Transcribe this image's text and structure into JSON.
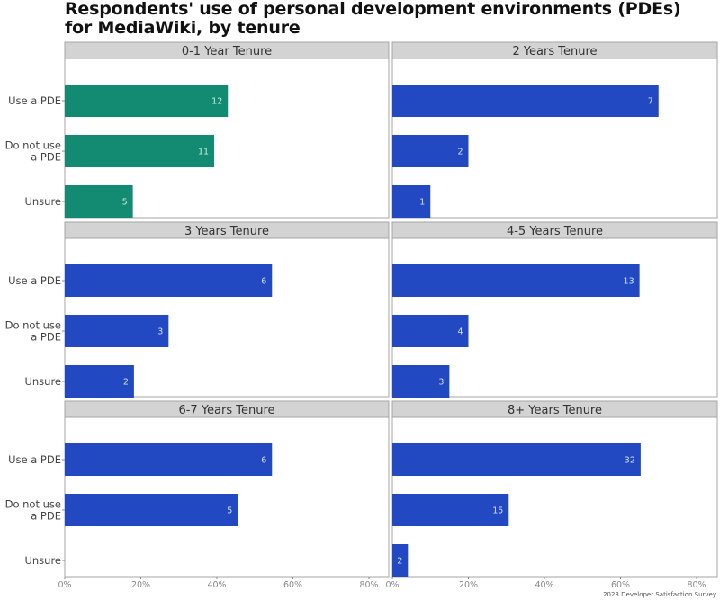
{
  "chart_data": {
    "type": "bar",
    "orientation": "horizontal",
    "title": "Respondents' use of personal development environments (PDEs) for MediaWiki, by tenure",
    "caption": "2023 Developer Satisfaction Survey",
    "categories": [
      "Use a PDE",
      "Do not use a PDE",
      "Unsure"
    ],
    "category_lines": [
      [
        "Use a PDE"
      ],
      [
        "Do not use",
        "a PDE"
      ],
      [
        "Unsure"
      ]
    ],
    "xlabel": "",
    "ylabel": "",
    "xlim": [
      0,
      80
    ],
    "x_ticks": [
      0,
      20,
      40,
      60,
      80
    ],
    "x_tick_labels": [
      "0%",
      "20%",
      "40%",
      "60%",
      "80%"
    ],
    "value_format": "percent",
    "grid": false,
    "legend": "none",
    "colors": {
      "highlight": "#138a72",
      "default": "#2349c2",
      "strip_bg": "#d3d3d3",
      "panel_border": "#a6a6a6"
    },
    "panels": [
      {
        "title": "0-1 Year Tenure",
        "highlight": true,
        "counts": [
          12,
          11,
          5
        ],
        "percents": [
          42.9,
          39.3,
          17.9
        ]
      },
      {
        "title": "2 Years Tenure",
        "highlight": false,
        "counts": [
          7,
          2,
          1
        ],
        "percents": [
          70.0,
          20.0,
          10.0
        ]
      },
      {
        "title": "3 Years Tenure",
        "highlight": false,
        "counts": [
          6,
          3,
          2
        ],
        "percents": [
          54.5,
          27.3,
          18.2
        ]
      },
      {
        "title": "4-5 Years Tenure",
        "highlight": false,
        "counts": [
          13,
          4,
          3
        ],
        "percents": [
          65.0,
          20.0,
          15.0
        ]
      },
      {
        "title": "6-7 Years Tenure",
        "highlight": false,
        "counts": [
          6,
          5,
          0
        ],
        "percents": [
          54.5,
          45.5,
          0
        ]
      },
      {
        "title": "8+ Years Tenure",
        "highlight": false,
        "counts": [
          32,
          15,
          2
        ],
        "percents": [
          65.3,
          30.6,
          4.1
        ]
      }
    ]
  }
}
